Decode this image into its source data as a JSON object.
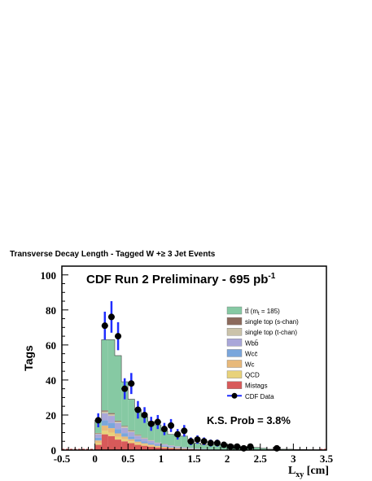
{
  "figure_title": "Transverse Decay Length - Tagged W +≥ 3 Jet Events",
  "chart_data": {
    "type": "bar",
    "stacked": true,
    "title": "CDF Run 2 Preliminary - 695 pb",
    "title_superscript": "-1",
    "annotation": "K.S. Prob = 3.8%",
    "xlabel": "L",
    "xlabel_subscript": "xy",
    "xlabel_unit": " [cm]",
    "ylabel": "Tags",
    "xlim": [
      -0.5,
      3.5
    ],
    "ylim": [
      0,
      105
    ],
    "xticks": [
      "-0.5",
      "0",
      "0.5",
      "1",
      "1.5",
      "2",
      "2.5",
      "3",
      "3.5"
    ],
    "yticks": [
      "0",
      "20",
      "40",
      "60",
      "80",
      "100"
    ],
    "grid": false,
    "legend_position": "right",
    "bin_edges": [
      0.0,
      0.1,
      0.2,
      0.3,
      0.4,
      0.5,
      0.6,
      0.7,
      0.8,
      0.9,
      1.0,
      1.1,
      1.2,
      1.3,
      1.4,
      1.5,
      1.6,
      1.7,
      1.8,
      1.9,
      2.0,
      2.1,
      2.2,
      2.3,
      2.4,
      2.5,
      2.6,
      2.7,
      2.8,
      2.9,
      3.0,
      3.1,
      3.2,
      3.3,
      3.4,
      3.5
    ],
    "series": [
      {
        "name": "Mistags",
        "color": "#d85a5a",
        "values": [
          3,
          9,
          8,
          6,
          5,
          4,
          3,
          2.5,
          2,
          1.5,
          1.2,
          1,
          0.8,
          0.6,
          0.5,
          0.4,
          0.3,
          0.3,
          0.2,
          0.2,
          0.1,
          0.1,
          0.1,
          0.1,
          0.1,
          0,
          0,
          0,
          0,
          0,
          0,
          0,
          0,
          0,
          0
        ]
      },
      {
        "name": "QCD",
        "color": "#e8d27a",
        "values": [
          1,
          2,
          2,
          1.5,
          1.2,
          1,
          0.8,
          0.6,
          0.5,
          0.4,
          0.3,
          0.2,
          0.2,
          0.1,
          0.1,
          0.1,
          0,
          0,
          0,
          0,
          0,
          0,
          0,
          0,
          0,
          0,
          0,
          0,
          0,
          0,
          0,
          0,
          0,
          0,
          0
        ]
      },
      {
        "name": "Wc",
        "color": "#e8b97a",
        "values": [
          1.5,
          3,
          2.5,
          2,
          1.5,
          1.2,
          1,
          0.8,
          0.6,
          0.5,
          0.4,
          0.3,
          0.2,
          0.2,
          0.1,
          0.1,
          0.1,
          0,
          0,
          0,
          0,
          0,
          0,
          0,
          0,
          0,
          0,
          0,
          0,
          0,
          0,
          0,
          0,
          0,
          0
        ]
      },
      {
        "name": "Wcc̄",
        "color": "#7aa6dc",
        "values": [
          1.5,
          3,
          3,
          2.5,
          2,
          1.6,
          1.3,
          1,
          0.8,
          0.6,
          0.5,
          0.4,
          0.3,
          0.2,
          0.2,
          0.1,
          0.1,
          0.1,
          0,
          0,
          0,
          0,
          0,
          0,
          0,
          0,
          0,
          0,
          0,
          0,
          0,
          0,
          0,
          0,
          0
        ]
      },
      {
        "name": "Wbb̄",
        "color": "#a9a7d9",
        "values": [
          2,
          4,
          4,
          3.5,
          3,
          2.5,
          2,
          1.6,
          1.3,
          1,
          0.8,
          0.6,
          0.5,
          0.4,
          0.3,
          0.2,
          0.2,
          0.1,
          0.1,
          0.1,
          0,
          0,
          0,
          0,
          0,
          0,
          0,
          0,
          0,
          0,
          0,
          0,
          0,
          0,
          0
        ]
      },
      {
        "name": "single top (t-chan)",
        "color": "#cbc3aa",
        "values": [
          0.5,
          1,
          1,
          0.8,
          0.7,
          0.6,
          0.5,
          0.4,
          0.3,
          0.2,
          0.2,
          0.1,
          0.1,
          0.1,
          0.1,
          0,
          0,
          0,
          0,
          0,
          0,
          0,
          0,
          0,
          0,
          0,
          0,
          0,
          0,
          0,
          0,
          0,
          0,
          0,
          0
        ]
      },
      {
        "name": "single top (s-chan)",
        "color": "#8c6a5c",
        "values": [
          0.3,
          0.6,
          0.6,
          0.5,
          0.4,
          0.4,
          0.3,
          0.2,
          0.2,
          0.1,
          0.1,
          0.1,
          0.1,
          0,
          0,
          0,
          0,
          0,
          0,
          0,
          0,
          0,
          0,
          0,
          0,
          0,
          0,
          0,
          0,
          0,
          0,
          0,
          0,
          0,
          0
        ]
      },
      {
        "name": "tt̄ (m",
        "name_subscript": "t",
        "name_suffix": " = 185)",
        "color": "#86c9a3",
        "values": [
          7.2,
          40.4,
          41.9,
          37.1,
          25.2,
          17.7,
          14.1,
          11.9,
          10.6,
          10.1,
          7.5,
          6.3,
          5.8,
          6.4,
          3.7,
          3.1,
          2.3,
          2.5,
          2.7,
          2.7,
          2.9,
          2.4,
          1.9,
          0.9,
          1.4,
          1.0,
          0.5,
          0.5,
          0.5,
          0.5,
          0.3,
          0.3,
          0.2,
          0.2,
          0.2
        ]
      }
    ],
    "data_points": {
      "name": "CDF Data",
      "color": "#1f2dff",
      "x": [
        0.05,
        0.15,
        0.25,
        0.35,
        0.45,
        0.55,
        0.65,
        0.75,
        0.85,
        0.95,
        1.05,
        1.15,
        1.25,
        1.35,
        1.45,
        1.55,
        1.65,
        1.75,
        1.85,
        1.95,
        2.05,
        2.15,
        2.25,
        2.35,
        2.75
      ],
      "y": [
        17,
        71,
        76,
        65,
        35,
        38,
        23,
        20,
        15,
        16,
        12,
        14,
        9,
        11,
        5,
        6,
        5,
        4,
        4,
        3,
        2,
        2,
        1,
        2,
        1
      ],
      "err": [
        4,
        8,
        9,
        8,
        6,
        6,
        5,
        4.5,
        4,
        4,
        3.5,
        3.7,
        3,
        3.3,
        2.2,
        2.4,
        2.2,
        2,
        2,
        1.7,
        1.4,
        1.4,
        1,
        1.4,
        1
      ]
    }
  }
}
